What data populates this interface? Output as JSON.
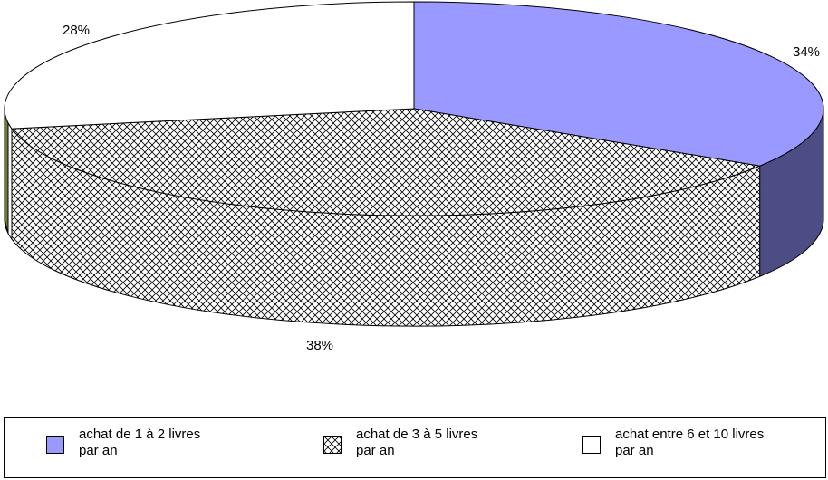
{
  "chart_data": {
    "type": "pie",
    "three_d": true,
    "labels": [
      "achat de 1 à 2 livres par an",
      "achat de 3 à 5 livres par an",
      "achat entre 6 et 10 livres par an"
    ],
    "values": [
      34,
      38,
      28
    ],
    "value_labels": [
      "34%",
      "38%",
      "28%"
    ],
    "fills": [
      "#9999FF",
      "crosshatch",
      "#FFFFFF"
    ],
    "legend_position": "bottom"
  },
  "legend": {
    "items": [
      {
        "line1": "achat de 1 à 2 livres",
        "line2": "par an"
      },
      {
        "line1": "achat de 3 à 5 livres",
        "line2": "par an"
      },
      {
        "line1": "achat entre 6 et 10 livres",
        "line2": "par an"
      }
    ]
  },
  "colors": {
    "slice_1_top": "#9999FF",
    "slice_1_side": "#4D4D85",
    "outline": "#000000",
    "hatch": "#000000",
    "background": "#FFFFFF"
  }
}
